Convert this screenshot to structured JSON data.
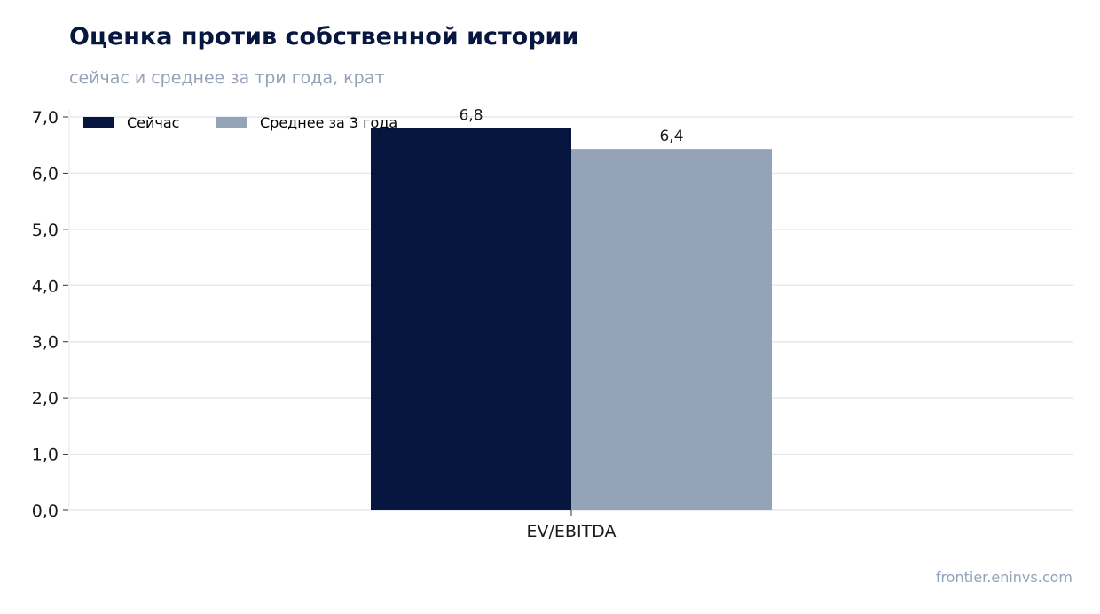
{
  "header": {
    "title": "Оценка против собственной истории",
    "subtitle": "сейчас и среднее за три года, крат"
  },
  "footer": {
    "source": "frontier.eninvs.com"
  },
  "colors": {
    "now": "#07163f",
    "avg": "#95a3b8",
    "grid": "#e3e7ef",
    "text": "#1a1a1a"
  },
  "chart_data": {
    "type": "bar",
    "categories": [
      "EV/EBITDA"
    ],
    "series": [
      {
        "name": "Сейчас",
        "values": [
          6.8
        ],
        "labels": [
          "6,8"
        ],
        "color": "#07163f"
      },
      {
        "name": "Среднее за 3 года",
        "values": [
          6.43
        ],
        "labels": [
          "6,4"
        ],
        "color": "#95a3b8"
      }
    ],
    "ylim": [
      0,
      7
    ],
    "yticks": [
      "0,0",
      "1,0",
      "2,0",
      "3,0",
      "4,0",
      "5,0",
      "6,0",
      "7,0"
    ],
    "grid": true,
    "legend": "top-left"
  }
}
